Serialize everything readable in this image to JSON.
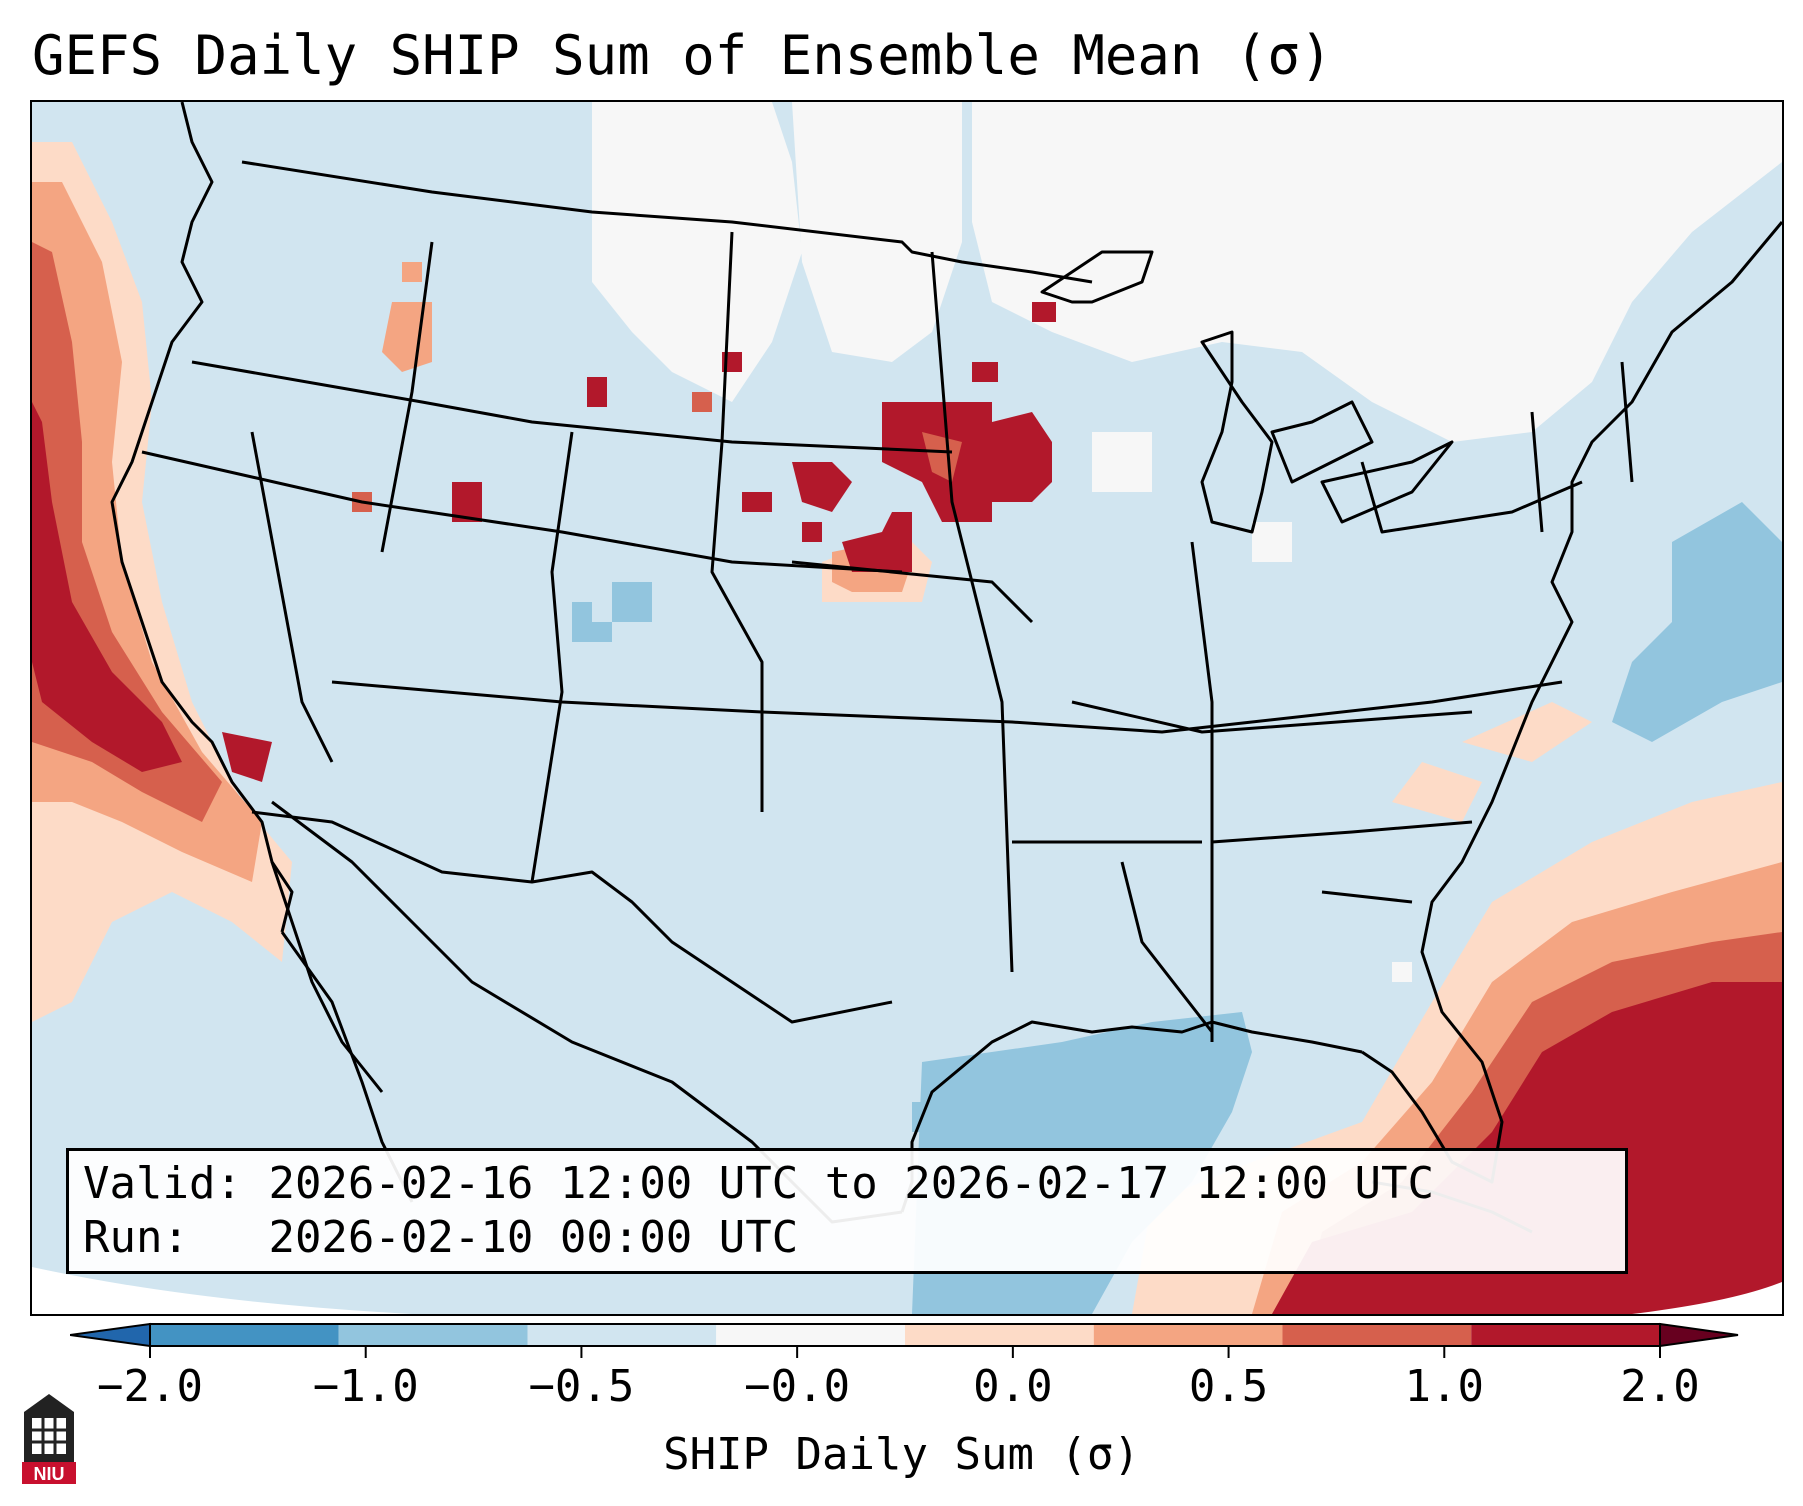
{
  "title": "GEFS Daily SHIP Sum of Ensemble Mean (σ)",
  "valid_label": "Valid:",
  "valid_value": "2026-02-16 12:00 UTC to 2026-02-17 12:00 UTC",
  "run_label": "Run:",
  "run_value": "2026-02-10 00:00 UTC",
  "colorbar": {
    "label": "SHIP Daily Sum (σ)",
    "ticks": [
      "−2.0",
      "−1.0",
      "−0.5",
      "−0.0",
      "0.0",
      "0.5",
      "1.0",
      "2.0"
    ],
    "colors": [
      "#4393c3",
      "#92c5de",
      "#d1e5f0",
      "#f7f7f7",
      "#fddbc7",
      "#f4a582",
      "#d6604d",
      "#b2182b"
    ],
    "extend": "both"
  },
  "logo": {
    "text": "NIU",
    "color": "#c8102e"
  }
}
